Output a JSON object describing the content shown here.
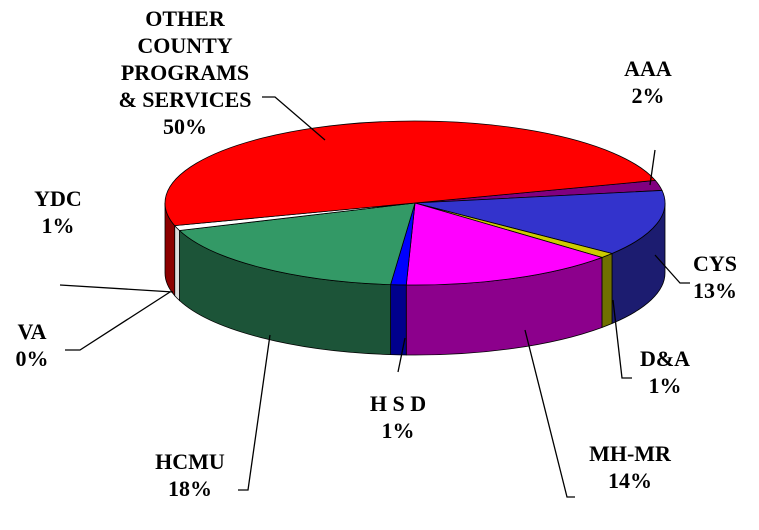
{
  "chart_data": {
    "type": "pie",
    "categories": [
      "AAA",
      "CYS",
      "D&A",
      "MH-MR",
      "H S D",
      "HCMU",
      "VA",
      "YDC",
      "OTHER COUNTY PROGRAMS & SERVICES"
    ],
    "values": [
      2,
      13,
      1,
      14,
      1,
      18,
      0,
      1,
      50
    ],
    "value_labels": [
      "2%",
      "13%",
      "1%",
      "14%",
      "1%",
      "18%",
      "0%",
      "1%",
      "50%"
    ],
    "colors": [
      "#800080",
      "#3333cc",
      "#cccc00",
      "#ff00ff",
      "#0000ff",
      "#339966",
      "#ffffff",
      "#ffffff",
      "#ff0000"
    ]
  }
}
